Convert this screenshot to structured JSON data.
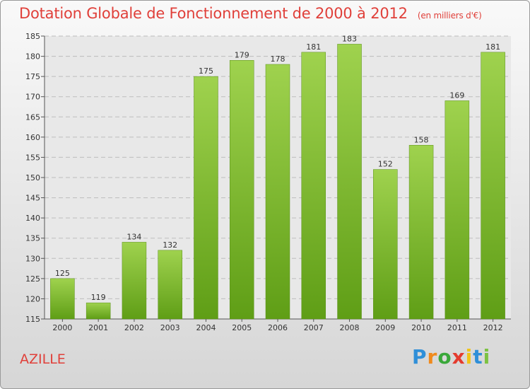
{
  "chart_data": {
    "type": "bar",
    "title": "Dotation Globale de Fonctionnement de 2000 à 2012",
    "subtitle": "(en milliers d'€)",
    "categories": [
      "2000",
      "2001",
      "2002",
      "2003",
      "2004",
      "2005",
      "2006",
      "2007",
      "2008",
      "2009",
      "2010",
      "2011",
      "2012"
    ],
    "values": [
      125,
      119,
      134,
      132,
      175,
      179,
      178,
      181,
      183,
      152,
      158,
      169,
      181
    ],
    "ylim": [
      115,
      185
    ],
    "yticks": [
      115,
      120,
      125,
      130,
      135,
      140,
      145,
      150,
      155,
      160,
      165,
      170,
      175,
      180,
      185
    ],
    "grid": true,
    "bar_color": "#7ab82e"
  },
  "commune": "AZILLE",
  "logo": {
    "letters": [
      "P",
      "r",
      "o",
      "x",
      "i",
      "t",
      "i"
    ],
    "colors": [
      "#2f8fd8",
      "#f08a1c",
      "#3aa83a",
      "#e43b2e",
      "#f0c419",
      "#2f8fd8",
      "#7cc242"
    ]
  }
}
